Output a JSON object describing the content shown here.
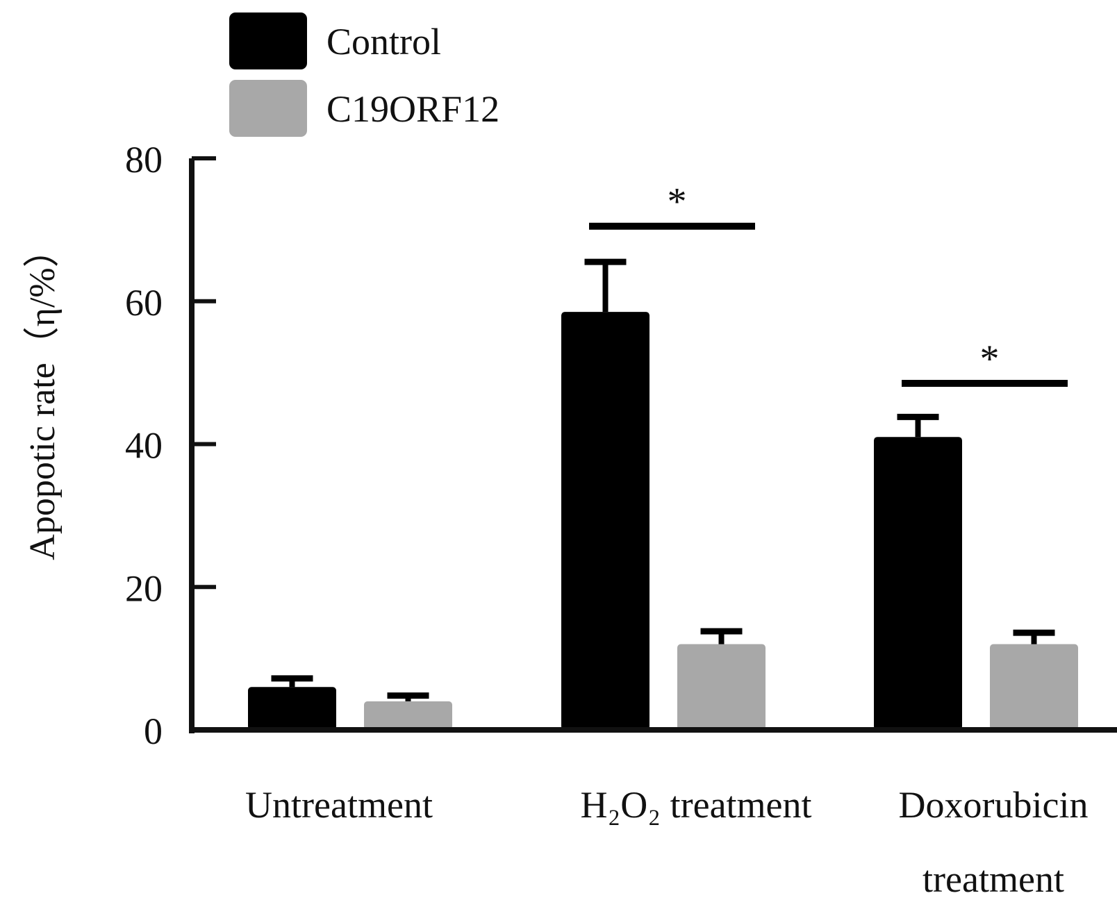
{
  "chart_data": {
    "type": "bar",
    "ylabel": "Apopotic rate（η/%）",
    "ylim": [
      0,
      80
    ],
    "yticks": [
      0,
      20,
      40,
      60,
      80
    ],
    "categories": [
      {
        "lines": [
          "Untreatment"
        ]
      },
      {
        "lines": [
          "H₂O₂  treatment"
        ]
      },
      {
        "lines": [
          "Doxorubicin",
          "treatment"
        ]
      }
    ],
    "series": [
      {
        "name": "Control",
        "color": "#000000",
        "values": [
          6,
          58.5,
          41
        ],
        "errors": [
          1.2,
          7,
          2.8
        ]
      },
      {
        "name": "C19ORF12",
        "color": "#a8a8a8",
        "values": [
          4,
          12,
          12
        ],
        "errors": [
          0.8,
          1.8,
          1.6
        ]
      }
    ],
    "significance": [
      {
        "category": 1,
        "label": "*",
        "y": 70.5
      },
      {
        "category": 2,
        "label": "*",
        "y": 48.5
      }
    ],
    "legend_position": "top-left"
  }
}
